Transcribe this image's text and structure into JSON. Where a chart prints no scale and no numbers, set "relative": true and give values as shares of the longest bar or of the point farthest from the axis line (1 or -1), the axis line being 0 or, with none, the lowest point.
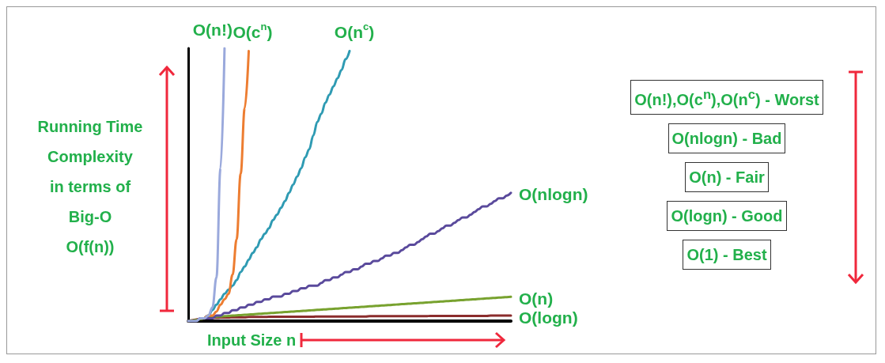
{
  "chart_data": {
    "type": "line",
    "relative": true,
    "marker": "none",
    "legend": false,
    "xlabel": "Input Size n",
    "ylabel": "Running Time\nComplexity\nin terms of\nBig-O\nO(f(n))",
    "annotations": [
      "O(n!),O(c$^{n}$),O(n$^{c}$) - Worst",
      "O(nlogn) - Bad",
      "O(n) - Fair",
      "O(logn) - Good",
      "O(1) - Best"
    ],
    "categories": [
      null,
      null,
      null,
      null,
      null,
      null,
      null,
      null,
      null,
      null,
      null,
      null,
      null,
      null,
      null,
      null,
      null,
      null,
      null,
      null,
      null,
      null,
      null,
      null,
      null,
      null,
      null,
      null,
      null,
      null,
      null,
      null,
      null,
      null,
      null,
      null,
      null,
      null,
      null,
      null,
      null,
      null,
      null,
      null,
      null,
      null,
      null,
      null,
      null,
      null,
      null,
      null,
      null,
      null,
      null,
      null,
      null,
      null,
      null,
      null,
      null,
      null,
      null,
      null,
      null,
      null,
      null,
      null,
      null,
      null,
      null,
      null,
      null,
      null,
      null,
      null,
      null,
      null,
      null,
      null,
      null
    ],
    "series": [
      {
        "name": "O(n!)",
        "color": "#9aa9dc",
        "values": [
          0,
          0,
          0,
          0.01,
          0.01,
          0.02,
          0.05,
          0.16,
          0.56,
          1,
          null,
          null,
          null,
          null,
          null,
          null,
          null,
          null,
          null,
          null,
          null,
          null,
          null,
          null,
          null,
          null,
          null,
          null,
          null,
          null,
          null,
          null,
          null,
          null,
          null,
          null,
          null,
          null,
          null,
          null,
          null,
          null,
          null,
          null,
          null,
          null,
          null,
          null,
          null,
          null,
          null,
          null,
          null,
          null,
          null,
          null,
          null,
          null,
          null,
          null,
          null,
          null,
          null,
          null,
          null,
          null,
          null,
          null,
          null,
          null,
          null,
          null,
          null,
          null,
          null,
          null,
          null,
          null,
          null,
          null,
          null
        ]
      },
      {
        "name": "O(c$^{n}$)",
        "color": "#ed7d31",
        "values": [
          null,
          null,
          null,
          null,
          0.01,
          0.02,
          0.02,
          0.035,
          0.06,
          0.08,
          0.1,
          0.17,
          0.3,
          0.54,
          0.78,
          0.99,
          null,
          null,
          null,
          null,
          null,
          null,
          null,
          null,
          null,
          null,
          null,
          null,
          null,
          null,
          null,
          null,
          null,
          null,
          null,
          null,
          null,
          null,
          null,
          null,
          null,
          null,
          null,
          null,
          null,
          null,
          null,
          null,
          null,
          null,
          null,
          null,
          null,
          null,
          null,
          null,
          null,
          null,
          null,
          null,
          null,
          null,
          null,
          null,
          null,
          null,
          null,
          null,
          null,
          null,
          null,
          null,
          null,
          null,
          null,
          null,
          null,
          null,
          null,
          null,
          null
        ]
      },
      {
        "name": "O(n$^{c}$)",
        "color": "#2f9bb3",
        "values": [
          null,
          null,
          null,
          null,
          0.01,
          0.02,
          0.04,
          0.06,
          0.08,
          0.1,
          0.115,
          0.13,
          0.15,
          0.18,
          0.2,
          0.225,
          0.25,
          0.27,
          0.3,
          0.32,
          0.34,
          0.37,
          0.39,
          0.415,
          0.44,
          0.47,
          0.5,
          0.53,
          0.56,
          0.6,
          0.63,
          0.68,
          0.73,
          0.76,
          0.8,
          0.83,
          0.86,
          0.89,
          0.92,
          0.96,
          0.99,
          null,
          null,
          null,
          null,
          null,
          null,
          null,
          null,
          null,
          null,
          null,
          null,
          null,
          null,
          null,
          null,
          null,
          null,
          null,
          null,
          null,
          null,
          null,
          null,
          null,
          null,
          null,
          null,
          null,
          null,
          null,
          null,
          null,
          null,
          null,
          null,
          null,
          null,
          null,
          null
        ]
      },
      {
        "name": "O(nlogn)",
        "color": "#5a4a9c",
        "values": [
          0,
          0,
          0,
          0.01,
          0.01,
          0.01,
          0.01,
          0.02,
          0.02,
          0.03,
          0.03,
          0.04,
          0.04,
          0.05,
          0.05,
          0.06,
          0.06,
          0.07,
          0.07,
          0.08,
          0.08,
          0.09,
          0.09,
          0.09,
          0.1,
          0.1,
          0.11,
          0.11,
          0.12,
          0.12,
          0.13,
          0.13,
          0.13,
          0.14,
          0.15,
          0.15,
          0.16,
          0.16,
          0.17,
          0.18,
          0.18,
          0.19,
          0.19,
          0.2,
          0.21,
          0.21,
          0.22,
          0.22,
          0.23,
          0.24,
          0.24,
          0.25,
          0.25,
          0.26,
          0.27,
          0.28,
          0.28,
          0.29,
          0.3,
          0.31,
          0.32,
          0.32,
          0.33,
          0.34,
          0.35,
          0.35,
          0.36,
          0.37,
          0.38,
          0.38,
          0.39,
          0.4,
          0.41,
          0.42,
          0.42,
          0.43,
          0.44,
          0.45,
          0.45,
          0.46,
          0.47
        ]
      },
      {
        "name": "O(n)",
        "color": "#78a22f",
        "values": [
          0,
          0.002,
          0.004,
          0.007,
          0.01,
          0.012,
          0.015,
          0.016,
          0.017,
          0.018,
          0.019,
          0.02,
          0.021,
          0.022,
          0.023,
          0.024,
          0.025,
          0.026,
          0.027,
          0.028,
          0.029,
          0.03,
          0.031,
          0.032,
          0.033,
          0.034,
          0.035,
          0.036,
          0.037,
          0.038,
          0.039,
          0.04,
          0.041,
          0.042,
          0.043,
          0.044,
          0.045,
          0.046,
          0.047,
          0.048,
          0.049,
          0.05,
          0.051,
          0.052,
          0.053,
          0.054,
          0.055,
          0.056,
          0.057,
          0.058,
          0.059,
          0.06,
          0.061,
          0.062,
          0.063,
          0.064,
          0.065,
          0.066,
          0.067,
          0.068,
          0.069,
          0.07,
          0.071,
          0.072,
          0.073,
          0.074,
          0.075,
          0.076,
          0.077,
          0.078,
          0.079,
          0.08,
          0.081,
          0.082,
          0.083,
          0.084,
          0.085,
          0.086,
          0.087,
          0.088,
          0.089
        ]
      },
      {
        "name": "O(logn)",
        "color": "#8b2c2c",
        "values": [
          0,
          0.003,
          0.006,
          0.008,
          0.01,
          0.011,
          0.012,
          0.012,
          0.013,
          0.013,
          0.013,
          0.014,
          0.014,
          0.014,
          0.014,
          0.015,
          0.015,
          0.015,
          0.015,
          0.015,
          0.016,
          0.016,
          0.016,
          0.016,
          0.016,
          0.016,
          0.016,
          0.016,
          0.016,
          0.016,
          0.016,
          0.016,
          0.017,
          0.017,
          0.017,
          0.017,
          0.017,
          0.017,
          0.017,
          0.017,
          0.017,
          0.017,
          0.017,
          0.017,
          0.017,
          0.018,
          0.018,
          0.018,
          0.018,
          0.018,
          0.018,
          0.018,
          0.018,
          0.018,
          0.018,
          0.018,
          0.018,
          0.018,
          0.018,
          0.018,
          0.019,
          0.019,
          0.019,
          0.019,
          0.019,
          0.019,
          0.019,
          0.019,
          0.019,
          0.019,
          0.019,
          0.019,
          0.019,
          0.019,
          0.019,
          0.02,
          0.02,
          0.02,
          0.02,
          0.02,
          0.02
        ]
      }
    ]
  }
}
